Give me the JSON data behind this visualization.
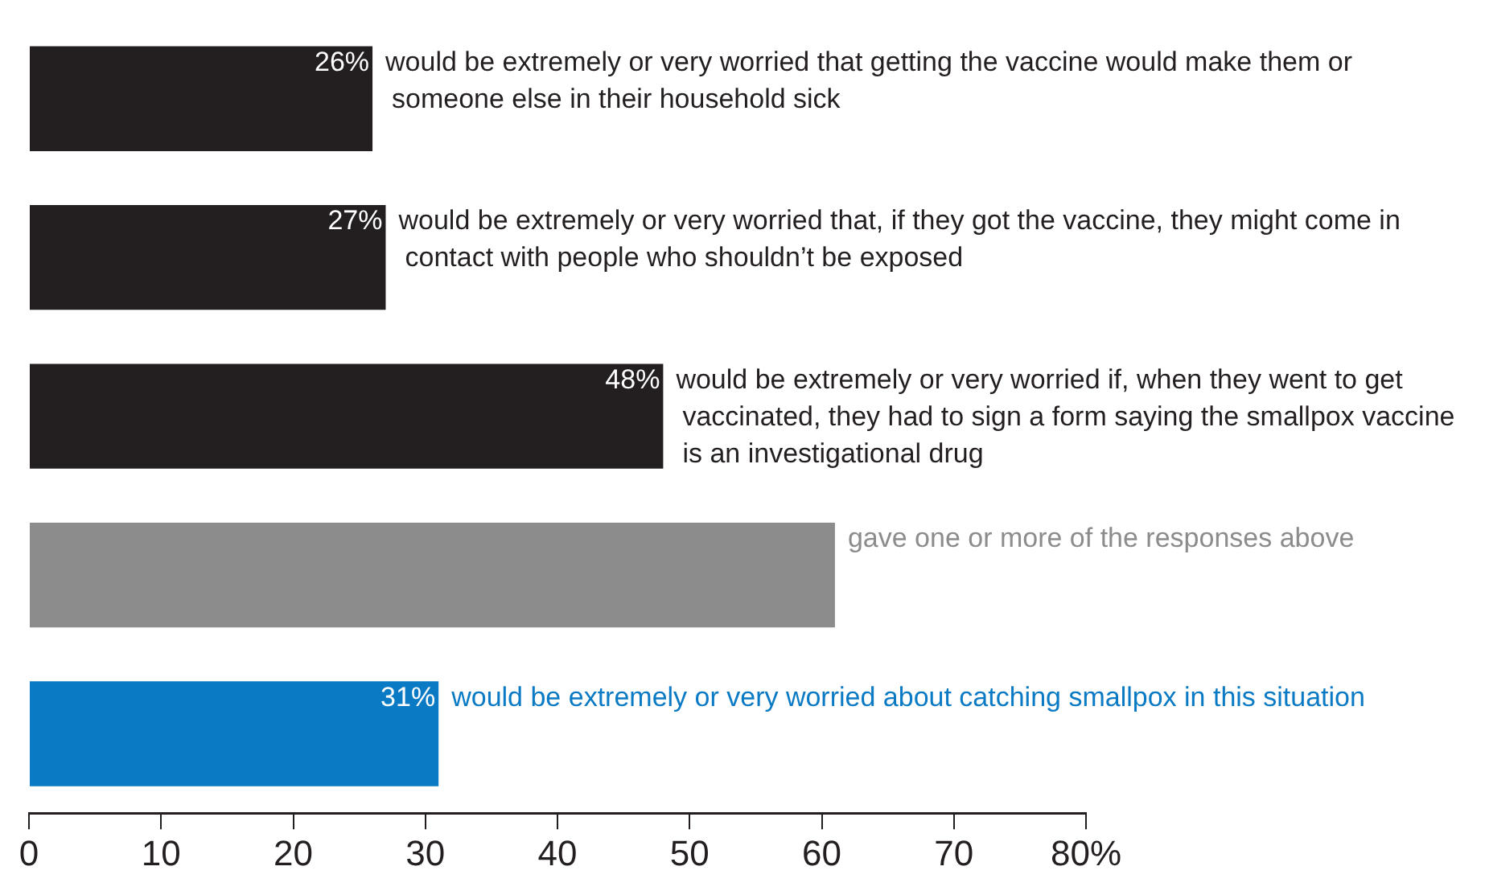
{
  "chart_data": {
    "type": "bar",
    "orientation": "horizontal",
    "categories": [
      "would be extremely or very worried that getting the vaccine would make them or someone else in their household sick",
      "would be extremely or very worried that, if they got the vaccine, they might come in contact with people who shouldn’t be exposed",
      "would be extremely or very worried if, when they went to get vaccinated, they had to sign a form saying the smallpox vaccine is an investigational drug",
      "gave one or more of the responses above",
      "would be extremely or very worried about catching smallpox in this situation"
    ],
    "values": [
      26,
      27,
      48,
      61,
      31
    ],
    "colors": [
      "#231f20",
      "#231f20",
      "#231f20",
      "#8c8c8c",
      "#0a7ac4"
    ],
    "value_labels": [
      "26%",
      "27%",
      "48%",
      null,
      "31%"
    ],
    "xlim": [
      0,
      80
    ],
    "xticks": [
      0,
      10,
      20,
      30,
      40,
      50,
      60,
      70,
      {
        "value": 80,
        "label": "80%"
      }
    ],
    "grid": false,
    "legend": false
  }
}
